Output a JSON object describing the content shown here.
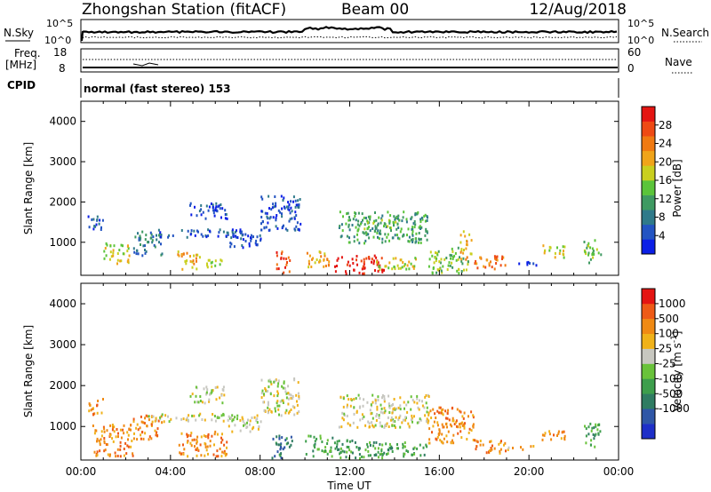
{
  "header": {
    "title": "Zhongshan Station (fitACF)",
    "beam": "Beam 00",
    "date": "12/Aug/2018"
  },
  "noise_panel": {
    "left_label": "N.Sky",
    "right_label": "N.Search",
    "ticks_top": "10^5",
    "ticks_bottom": "10^0"
  },
  "freq_panel": {
    "left_label": "Freq.",
    "left_unit": "[MHz]",
    "left_top": "18",
    "left_bottom": "8",
    "right_label": "Nave",
    "right_top": "60",
    "right_bottom": "0"
  },
  "cpid_panel": {
    "label": "CPID",
    "text": "normal (fast stereo) 153"
  },
  "chart_data": [
    {
      "type": "heatmap",
      "name": "power",
      "ylabel": "Slant Range [km]",
      "xlabel": "",
      "ylim": [
        180,
        4500
      ],
      "yticks": [
        1000,
        2000,
        3000,
        4000
      ],
      "xticks": [
        "00:00",
        "04:00",
        "08:00",
        "12:00",
        "16:00",
        "20:00",
        "00:00"
      ],
      "xlim_hours": [
        0,
        24
      ],
      "colorbar": {
        "label": "Power [dB]",
        "ticks": [
          "4",
          "8",
          "12",
          "16",
          "20",
          "24",
          "28"
        ],
        "colors": [
          "#0b1fe6",
          "#2354c2",
          "#2f7a8a",
          "#3f9a62",
          "#5bc43a",
          "#c9cf1f",
          "#f0a41a",
          "#f07a12",
          "#ee4a14",
          "#e41512"
        ]
      },
      "blobs": [
        {
          "t0": 0.3,
          "t1": 1.0,
          "r0": 1300,
          "r1": 1700,
          "level": 1
        },
        {
          "t0": 1.0,
          "t1": 2.2,
          "r0": 500,
          "r1": 1000,
          "level": 5
        },
        {
          "t0": 2.3,
          "t1": 3.6,
          "r0": 700,
          "r1": 1300,
          "level": 2
        },
        {
          "t0": 3.0,
          "t1": 7.3,
          "r0": 1150,
          "r1": 1350,
          "level": 1
        },
        {
          "t0": 4.3,
          "t1": 5.3,
          "r0": 350,
          "r1": 800,
          "level": 6
        },
        {
          "t0": 5.5,
          "t1": 6.3,
          "r0": 400,
          "r1": 700,
          "level": 5
        },
        {
          "t0": 4.8,
          "t1": 6.5,
          "r0": 1600,
          "r1": 2000,
          "level": 1
        },
        {
          "t0": 6.5,
          "t1": 8.0,
          "r0": 900,
          "r1": 1300,
          "level": 1
        },
        {
          "t0": 8.0,
          "t1": 9.8,
          "r0": 1300,
          "r1": 2200,
          "level": 1
        },
        {
          "t0": 8.7,
          "t1": 9.3,
          "r0": 250,
          "r1": 800,
          "level": 8
        },
        {
          "t0": 10.0,
          "t1": 11.2,
          "r0": 400,
          "r1": 800,
          "level": 6
        },
        {
          "t0": 11.3,
          "t1": 13.5,
          "r0": 250,
          "r1": 700,
          "level": 9
        },
        {
          "t0": 11.5,
          "t1": 15.5,
          "r0": 1000,
          "r1": 1800,
          "level": 3
        },
        {
          "t0": 12.5,
          "t1": 14.2,
          "r0": 1300,
          "r1": 1600,
          "level": 4
        },
        {
          "t0": 13.0,
          "t1": 15.0,
          "r0": 350,
          "r1": 650,
          "level": 5
        },
        {
          "t0": 15.5,
          "t1": 17.3,
          "r0": 250,
          "r1": 900,
          "level": 4
        },
        {
          "t0": 16.9,
          "t1": 17.4,
          "r0": 600,
          "r1": 1300,
          "level": 6
        },
        {
          "t0": 17.5,
          "t1": 19.0,
          "r0": 350,
          "r1": 700,
          "level": 7
        },
        {
          "t0": 19.0,
          "t1": 20.3,
          "r0": 450,
          "r1": 550,
          "level": 0
        },
        {
          "t0": 20.5,
          "t1": 21.6,
          "r0": 650,
          "r1": 950,
          "level": 5
        },
        {
          "t0": 22.4,
          "t1": 23.2,
          "r0": 500,
          "r1": 1100,
          "level": 4
        }
      ]
    },
    {
      "type": "heatmap",
      "name": "velocity",
      "ylabel": "Slant Range [km]",
      "xlabel": "Time UT",
      "ylim": [
        180,
        4500
      ],
      "yticks": [
        1000,
        2000,
        3000,
        4000
      ],
      "xticks": [
        "00:00",
        "04:00",
        "08:00",
        "12:00",
        "16:00",
        "20:00",
        "00:00"
      ],
      "xlim_hours": [
        0,
        24
      ],
      "colorbar": {
        "label": "Velocity [m s",
        "label_sup": "-1",
        "label_end": "]",
        "ticks": [
          "1000",
          "500",
          "100",
          "25",
          "-25",
          "-100",
          "-500",
          "-1000"
        ],
        "colors": [
          "#1e2fc8",
          "#2f56a6",
          "#2f7c62",
          "#3d9e4c",
          "#69c23a",
          "#c7c7c0",
          "#f0b21a",
          "#f08a14",
          "#ee5a16",
          "#e41512"
        ]
      },
      "blobs": [
        {
          "t0": 0.3,
          "t1": 1.0,
          "r0": 1300,
          "r1": 1700,
          "level": 7
        },
        {
          "t0": 0.5,
          "t1": 2.3,
          "r0": 300,
          "r1": 1100,
          "level": 7
        },
        {
          "t0": 2.3,
          "t1": 3.6,
          "r0": 700,
          "r1": 1300,
          "level": 7
        },
        {
          "t0": 3.0,
          "t1": 7.3,
          "r0": 1150,
          "r1": 1350,
          "level": 5
        },
        {
          "t0": 4.3,
          "t1": 6.5,
          "r0": 300,
          "r1": 900,
          "level": 7
        },
        {
          "t0": 4.8,
          "t1": 6.5,
          "r0": 1600,
          "r1": 2000,
          "level": 5
        },
        {
          "t0": 6.5,
          "t1": 8.0,
          "r0": 900,
          "r1": 1300,
          "level": 5
        },
        {
          "t0": 8.0,
          "t1": 9.8,
          "r0": 1300,
          "r1": 2200,
          "level": 5
        },
        {
          "t0": 8.5,
          "t1": 9.5,
          "r0": 250,
          "r1": 800,
          "level": 2
        },
        {
          "t0": 10.0,
          "t1": 11.2,
          "r0": 300,
          "r1": 800,
          "level": 3
        },
        {
          "t0": 11.3,
          "t1": 13.5,
          "r0": 250,
          "r1": 700,
          "level": 3
        },
        {
          "t0": 11.5,
          "t1": 15.5,
          "r0": 1000,
          "r1": 1800,
          "level": 5
        },
        {
          "t0": 13.0,
          "t1": 15.5,
          "r0": 300,
          "r1": 650,
          "level": 3
        },
        {
          "t0": 15.5,
          "t1": 17.5,
          "r0": 600,
          "r1": 1500,
          "level": 7
        },
        {
          "t0": 17.5,
          "t1": 19.0,
          "r0": 350,
          "r1": 700,
          "level": 7
        },
        {
          "t0": 19.0,
          "t1": 20.3,
          "r0": 450,
          "r1": 550,
          "level": 6
        },
        {
          "t0": 20.5,
          "t1": 21.6,
          "r0": 650,
          "r1": 950,
          "level": 7
        },
        {
          "t0": 22.4,
          "t1": 23.2,
          "r0": 500,
          "r1": 1100,
          "level": 3
        }
      ]
    }
  ]
}
